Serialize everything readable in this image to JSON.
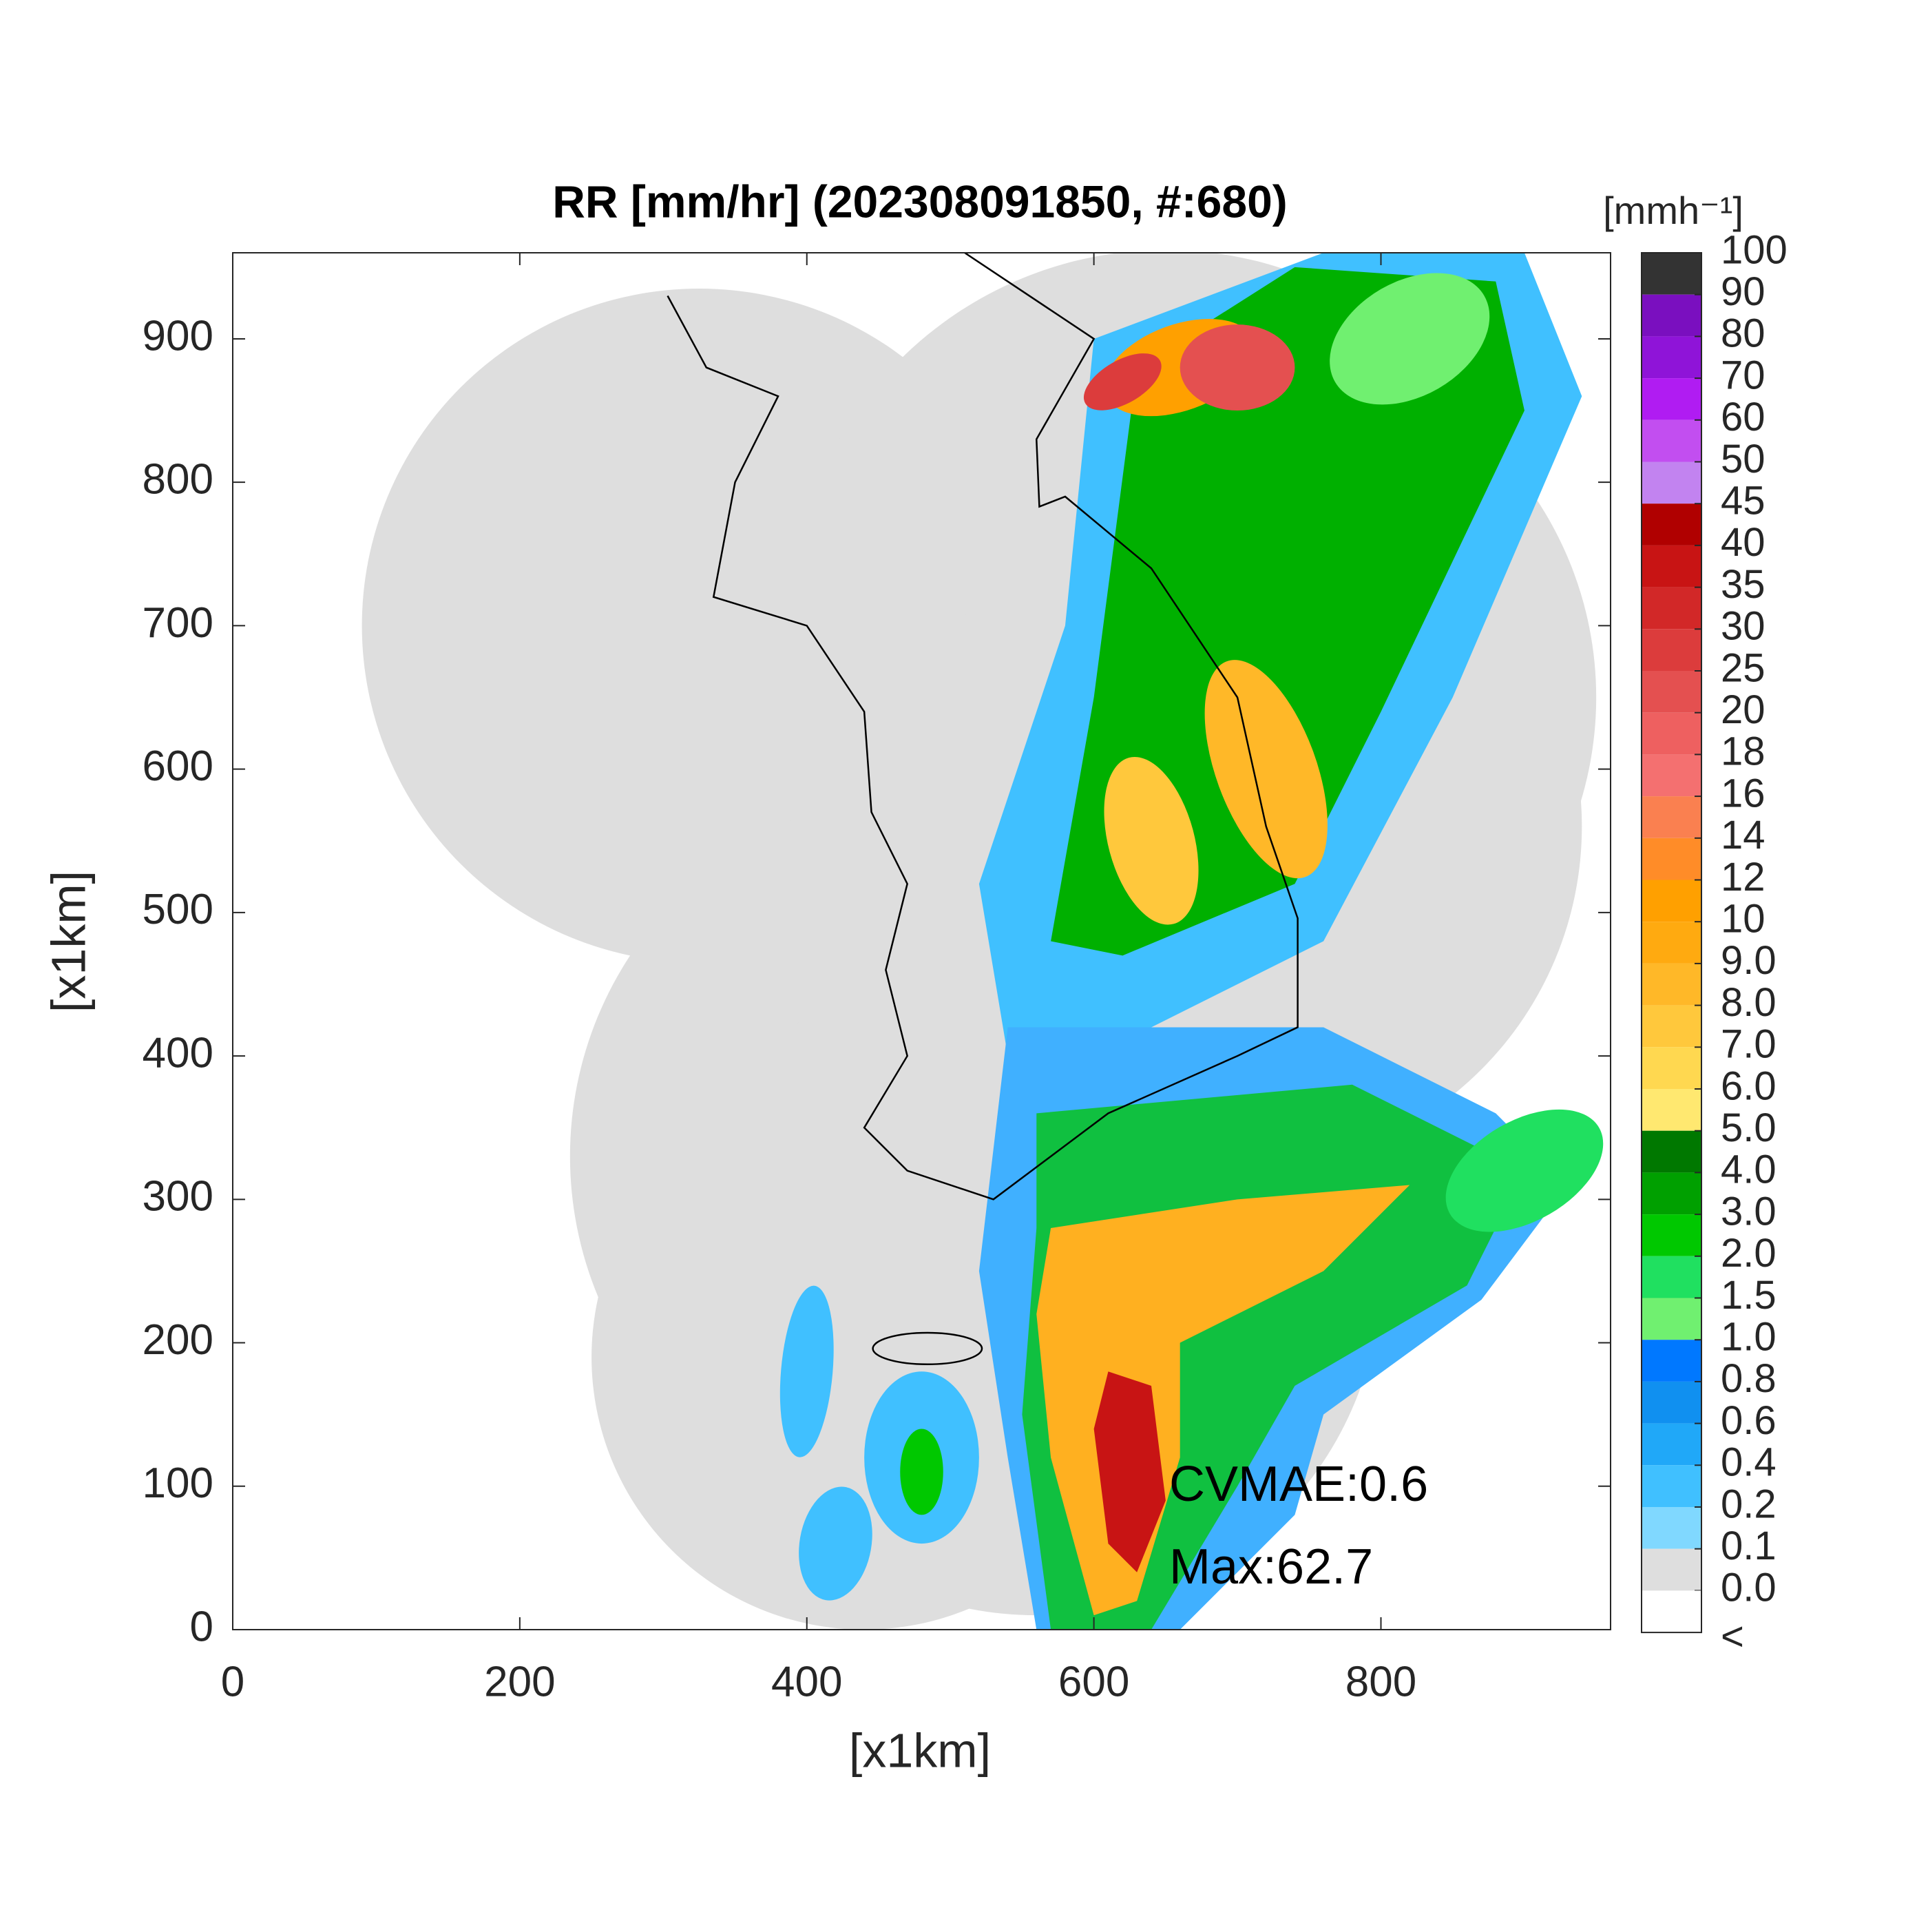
{
  "chart_data": {
    "type": "radar_map",
    "title": "RR [mm/hr] (202308091850, #:680)",
    "x_label": "[x1km]",
    "y_label": "[x1km]",
    "xlim": [
      0,
      960
    ],
    "ylim": [
      0,
      960
    ],
    "xticks": [
      0,
      200,
      400,
      600,
      800
    ],
    "yticks": [
      0,
      100,
      200,
      300,
      400,
      500,
      600,
      700,
      800,
      900
    ],
    "annotations": [
      "CVMAE:0.6",
      "Max:62.7"
    ],
    "colorbar": {
      "label": "[mmh⁻¹]",
      "ticks": [
        100,
        90,
        80,
        70,
        60,
        50,
        45,
        40,
        35,
        30,
        25,
        20,
        18,
        16,
        14,
        12,
        10,
        {
          "value": 9,
          "label": "9.0"
        },
        {
          "value": 8,
          "label": "8.0"
        },
        {
          "value": 7,
          "label": "7.0"
        },
        {
          "value": 6,
          "label": "6.0"
        },
        {
          "value": 5,
          "label": "5.0"
        },
        {
          "value": 4,
          "label": "4.0"
        },
        {
          "value": 3,
          "label": "3.0"
        },
        {
          "value": 2,
          "label": "2.0"
        },
        1.5,
        {
          "value": 1,
          "label": "1.0"
        },
        0.8,
        0.6,
        0.4,
        0.2,
        0.1,
        {
          "value": 0,
          "label": "0.0"
        }
      ],
      "under_label": "<",
      "colors": [
        "#333333",
        "#7a0fbf",
        "#8f14d8",
        "#b01cf2",
        "#c24ef0",
        "#c283f0",
        "#b00000",
        "#c81414",
        "#d22828",
        "#dc3c3c",
        "#e45050",
        "#ee6060",
        "#f47070",
        "#fa8050",
        "#ff8c28",
        "#ffa000",
        "#ffaa10",
        "#ffb828",
        "#ffc83c",
        "#ffd850",
        "#ffe870",
        "#007800",
        "#00a000",
        "#00c800",
        "#20e060",
        "#70f070",
        "#0078ff",
        "#1090f0",
        "#20a8f8",
        "#40c0ff",
        "#80d8ff",
        "#dedede",
        "#ffffff"
      ]
    }
  }
}
